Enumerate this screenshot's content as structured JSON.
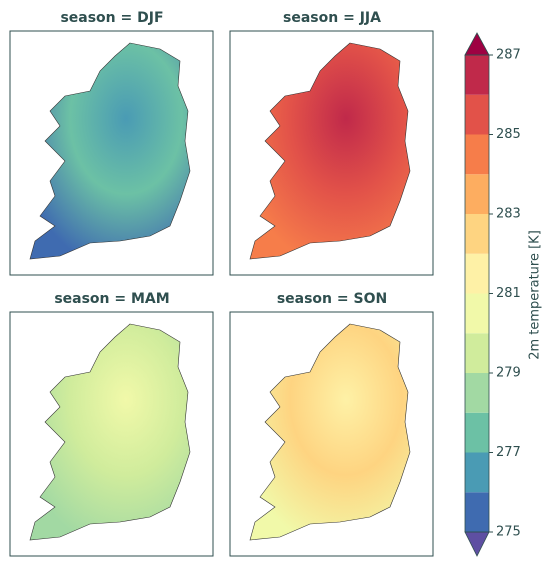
{
  "figure": {
    "panels": [
      {
        "title": "season = DJF",
        "colors": [
          "#4a9bb4",
          "#6cc1a5",
          "#3f6bb0"
        ]
      },
      {
        "title": "season = JJA",
        "colors": [
          "#c0294a",
          "#e25249",
          "#f67d4a"
        ]
      },
      {
        "title": "season = MAM",
        "colors": [
          "#f1f9a9",
          "#d0ec9c",
          "#a2d9a3"
        ]
      },
      {
        "title": "season = SON",
        "colors": [
          "#fef1a6",
          "#fed481",
          "#f1f9a9"
        ]
      }
    ],
    "colorbar": {
      "label": "2m temperature [K]",
      "levels": [
        275,
        276,
        277,
        278,
        279,
        280,
        281,
        282,
        283,
        284,
        285,
        286,
        287
      ],
      "colors": [
        "#3f6bb0",
        "#4a9bb4",
        "#6cc1a5",
        "#a2d9a3",
        "#d0ec9c",
        "#f1f9a9",
        "#fef1a6",
        "#fed481",
        "#fdad60",
        "#f67d4a",
        "#e25249",
        "#c0294a"
      ],
      "under_color": "#5e4fa2",
      "over_color": "#9e0142",
      "ticks": [
        275,
        277,
        279,
        281,
        283,
        285,
        287
      ]
    }
  }
}
